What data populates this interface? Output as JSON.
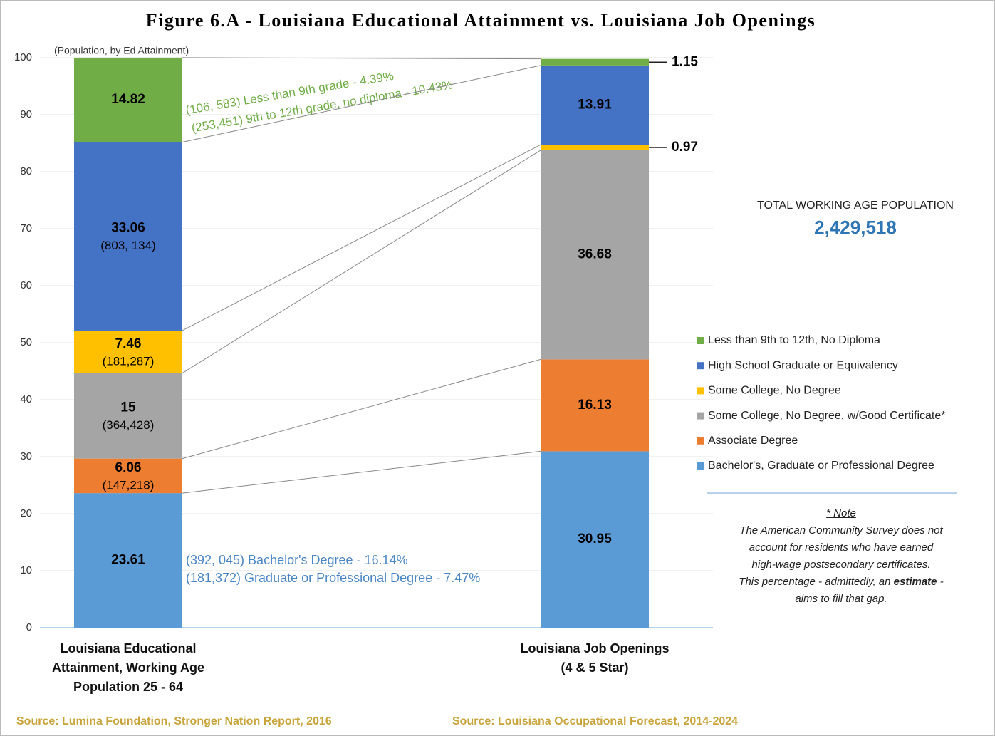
{
  "chart_data": {
    "type": "stacked_bar",
    "title": "Figure 6.A - Louisiana Educational Attainment  vs. Louisiana Job Openings",
    "y_note": "(Population, by Ed Attainment)",
    "categories": [
      "Louisiana Educational Attainment, Working Age Population 25 - 64",
      "Louisiana Job Openings (4 & 5 Star)"
    ],
    "series": [
      {
        "name": "Bachelor's, Graduate or Professional Degree",
        "color": "#5b9bd5",
        "values": [
          23.61,
          30.95
        ],
        "counts": [
          null,
          null
        ]
      },
      {
        "name": "Associate Degree",
        "color": "#ed7d31",
        "values": [
          6.06,
          16.13
        ],
        "counts": [
          "(147,218)",
          null
        ]
      },
      {
        "name": "Some College, No Degree, w/Good Certificate*",
        "color": "#a5a5a5",
        "values": [
          15,
          36.68
        ],
        "counts": [
          "(364,428)",
          null
        ]
      },
      {
        "name": "Some College, No Degree",
        "color": "#ffc000",
        "values": [
          7.46,
          0.97
        ],
        "counts": [
          "(181,287)",
          null
        ]
      },
      {
        "name": "High School Graduate or Equivalency",
        "color": "#4472c4",
        "values": [
          33.06,
          13.91
        ],
        "counts": [
          "(803, 134)",
          null
        ]
      },
      {
        "name": "Less than 9th to 12th, No Diploma",
        "color": "#70ad47",
        "values": [
          14.82,
          1.15
        ],
        "counts": [
          null,
          null
        ]
      }
    ],
    "ylim": [
      0,
      100
    ],
    "yticks": [
      0,
      10,
      20,
      30,
      40,
      50,
      60,
      70,
      80,
      90,
      100
    ],
    "grid": true,
    "annotations_top": [
      "(106, 583)  Less than 9th grade - 4.39%",
      "(253,451)  9th to 12th grade, no diploma - 10.43%"
    ],
    "annotations_bottom": [
      "(392, 045)  Bachelor's Degree - 16.14%",
      "(181,372)  Graduate or Professional Degree - 7.47%"
    ],
    "total_label": "TOTAL WORKING AGE POPULATION",
    "total_value": "2,429,518",
    "note_title": "* Note",
    "note_lines": [
      "The American Community Survey does not",
      "account for residents  who have earned",
      "high-wage postsecondary certificates."
    ],
    "note_line4": {
      "before": "This percentage  - admittedly,  an",
      "bold": "estimate",
      "after": "-"
    },
    "note_line5": "aims to fill that gap.",
    "sources": [
      "Source: Lumina Foundation, Stronger Nation Report, 2016",
      "Source: Louisiana  Occupational  Forecast, 2014-2024"
    ]
  }
}
